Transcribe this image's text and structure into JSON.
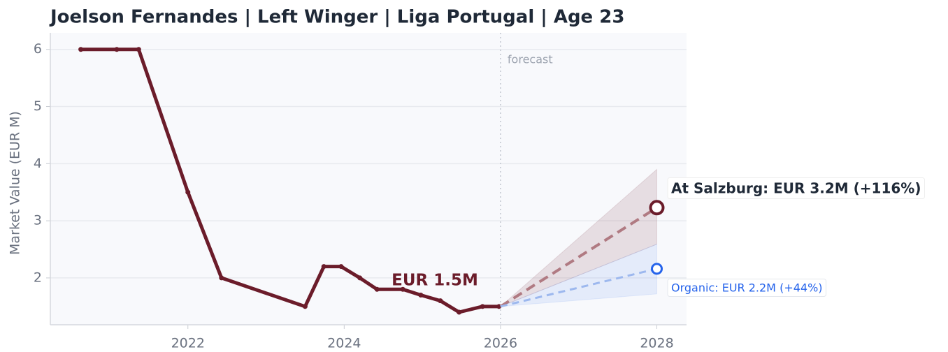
{
  "chart_data": {
    "type": "line",
    "title": "Joelson Fernandes  |  Left Winger  |  Liga Portugal  |  Age 23",
    "y_label": "Market Value (EUR M)",
    "xlim": [
      2020.24,
      2028.38
    ],
    "ylim": [
      1.18,
      6.29
    ],
    "xticks": [
      2022,
      2024,
      2026,
      2028
    ],
    "yticks": [
      2,
      3,
      4,
      5,
      6
    ],
    "grid": true,
    "series": [
      {
        "color": "#6b1c2a",
        "x": [
          2020.63,
          2021.09,
          2021.37,
          2022.0,
          2022.43,
          2023.5,
          2023.74,
          2023.96,
          2024.2,
          2024.42,
          2024.75,
          2024.98,
          2025.23,
          2025.47,
          2025.77,
          2025.98
        ],
        "values": [
          6,
          6,
          6,
          3.5,
          2.0,
          1.5,
          2.2,
          2.2,
          2.0,
          1.8,
          1.8,
          1.7,
          1.6,
          1.4,
          1.5,
          1.5
        ]
      },
      {
        "color": "#b07a82",
        "x": [
          2026,
          2028
        ],
        "values": [
          1.5,
          3.23
        ],
        "lower": [
          1.5,
          2.59
        ],
        "upper": [
          1.5,
          3.9
        ],
        "label": "At Salzburg: EUR 3.2M (+116%)"
      },
      {
        "color": "#2563eb",
        "x": [
          2026,
          2028
        ],
        "values": [
          1.5,
          2.16
        ],
        "lower": [
          1.5,
          1.72
        ],
        "upper": [
          1.5,
          2.59
        ],
        "label": "Organic: EUR 2.2M (+44%)"
      }
    ],
    "current_label": "EUR 1.5M",
    "forecast_label": "forecast"
  }
}
